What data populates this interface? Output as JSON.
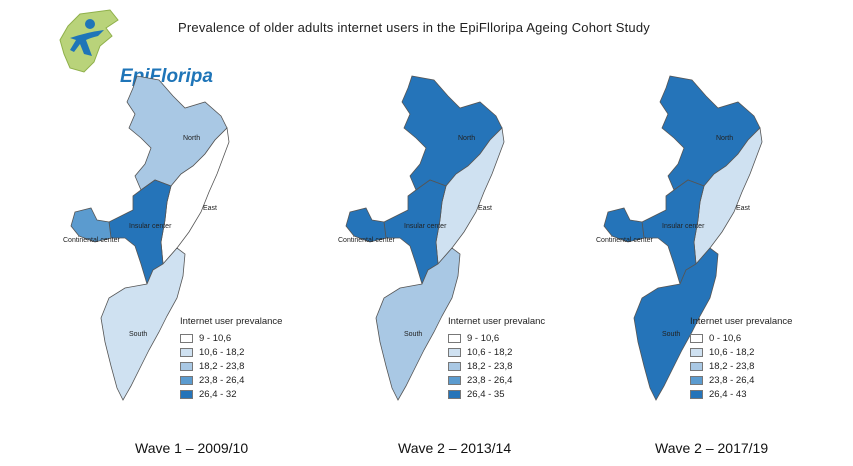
{
  "title": "Prevalence of older adults internet users in the EpiFlloripa Ageing Cohort Study",
  "logo": {
    "text": "EpiFloripa"
  },
  "palette": {
    "c1": "#ffffff",
    "c2": "#cfe1f1",
    "c3": "#a9c8e4",
    "c4": "#5b9bcf",
    "c5": "#2574b9"
  },
  "region_names": {
    "north": "North",
    "east": "East",
    "insular": "Insular center",
    "continental": "Continental center",
    "south": "South"
  },
  "maps": [
    {
      "caption": "Wave 1 – 2009/10",
      "legend_title": "Internet user prevalance",
      "legend": [
        "9 - 10,6",
        "10,6 - 18,2",
        "18,2 - 23,8",
        "23,8 - 26,4",
        "26,4 - 32"
      ],
      "regions": {
        "north": "c3",
        "east": "c1",
        "insular": "c5",
        "continental": "c4",
        "south": "c2"
      }
    },
    {
      "caption": "Wave 2 – 2013/14",
      "legend_title": "Internet user prevalanc",
      "legend": [
        "9 - 10,6",
        "10,6 - 18,2",
        "18,2 - 23,8",
        "23,8 - 26,4",
        "26,4 - 35"
      ],
      "regions": {
        "north": "c5",
        "east": "c2",
        "insular": "c5",
        "continental": "c5",
        "south": "c3"
      }
    },
    {
      "caption": "Wave 2 – 2017/19",
      "legend_title": "Internet user prevalance",
      "legend": [
        "0 - 10,6",
        "10,6 - 18,2",
        "18,2 - 23,8",
        "23,8 - 26,4",
        "26,4 - 43"
      ],
      "regions": {
        "north": "c5",
        "east": "c2",
        "insular": "c5",
        "continental": "c5",
        "south": "c5"
      }
    }
  ]
}
